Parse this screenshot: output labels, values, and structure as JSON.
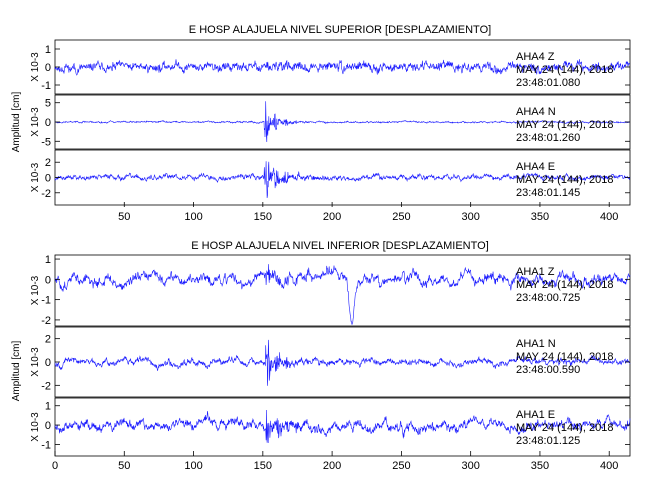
{
  "chart_data": [
    {
      "type": "line",
      "title": "E HOSP ALAJUELA NIVEL SUPERIOR [DESPLAZAMIENTO]",
      "ylabel": "Amplitud [cm]",
      "xlim": [
        0,
        415
      ],
      "xticks": [
        50,
        100,
        150,
        200,
        250,
        300,
        350,
        400
      ],
      "color": "#1a1aff",
      "panels": [
        {
          "channel": "AHA4 Z",
          "date": "MAY 24 (144), 2018",
          "time": "23:48:01.080",
          "unit": "X 10-3",
          "ylim": [
            -1.5,
            1.5
          ],
          "yticks": [
            1,
            0,
            -1
          ],
          "n": 1660,
          "seed": 11,
          "base": 0.38,
          "onset": 152,
          "burst": 0.12,
          "decay": 25,
          "lf": 0.3,
          "hf": 0.7,
          "dip": null
        },
        {
          "channel": "AHA4 N",
          "date": "MAY 24 (144), 2018",
          "time": "23:48:01.260",
          "unit": "X 10-3",
          "ylim": [
            -7,
            7
          ],
          "yticks": [
            5,
            0,
            -5
          ],
          "n": 1660,
          "seed": 23,
          "base": 0.35,
          "onset": 151,
          "burst": 4.2,
          "decay": 8,
          "lf": 0.45,
          "hf": 0.5,
          "dip": null
        },
        {
          "channel": "AHA4 E",
          "date": "MAY 24 (144), 2018",
          "time": "23:48:01.145",
          "unit": "X 10-3",
          "ylim": [
            -3.6,
            3.6
          ],
          "yticks": [
            2,
            0,
            -2
          ],
          "n": 1660,
          "seed": 37,
          "base": 0.55,
          "onset": 151,
          "burst": 2.2,
          "decay": 12,
          "lf": 0.5,
          "hf": 0.5,
          "dip": null
        }
      ]
    },
    {
      "type": "line",
      "title": "E HOSP ALAJUELA NIVEL INFERIOR [DESPLAZAMIENTO]",
      "ylabel": "Amplitud [cm]",
      "xlim": [
        0,
        415
      ],
      "xticks": [
        0,
        50,
        100,
        150,
        200,
        250,
        300,
        350,
        400
      ],
      "color": "#1a1aff",
      "panels": [
        {
          "channel": "AHA1 Z",
          "date": "MAY 24 (144), 2018",
          "time": "23:48:00.725",
          "unit": "X 10-3",
          "ylim": [
            -2.3,
            1.2
          ],
          "yticks": [
            1,
            0,
            -1,
            -2
          ],
          "n": 1660,
          "seed": 51,
          "base": 0.42,
          "onset": 152,
          "burst": 0.35,
          "decay": 15,
          "lf": 0.65,
          "hf": 0.35,
          "dip": 214
        },
        {
          "channel": "AHA1 N",
          "date": "MAY 24 (144), 2018",
          "time": "23:48:00.590",
          "unit": "X 10-3",
          "ylim": [
            -3,
            3
          ],
          "yticks": [
            2,
            0,
            -2
          ],
          "n": 1660,
          "seed": 67,
          "base": 0.45,
          "onset": 152,
          "burst": 1.6,
          "decay": 9,
          "lf": 0.55,
          "hf": 0.45,
          "dip": null
        },
        {
          "channel": "AHA1 E",
          "date": "MAY 24 (144), 2018",
          "time": "23:48:01.125",
          "unit": "X 10-3",
          "ylim": [
            -1.6,
            1.4
          ],
          "yticks": [
            1,
            0,
            -1
          ],
          "n": 1660,
          "seed": 79,
          "base": 0.42,
          "onset": 152,
          "burst": 0.65,
          "decay": 14,
          "lf": 0.65,
          "hf": 0.35,
          "dip": null
        }
      ]
    }
  ]
}
